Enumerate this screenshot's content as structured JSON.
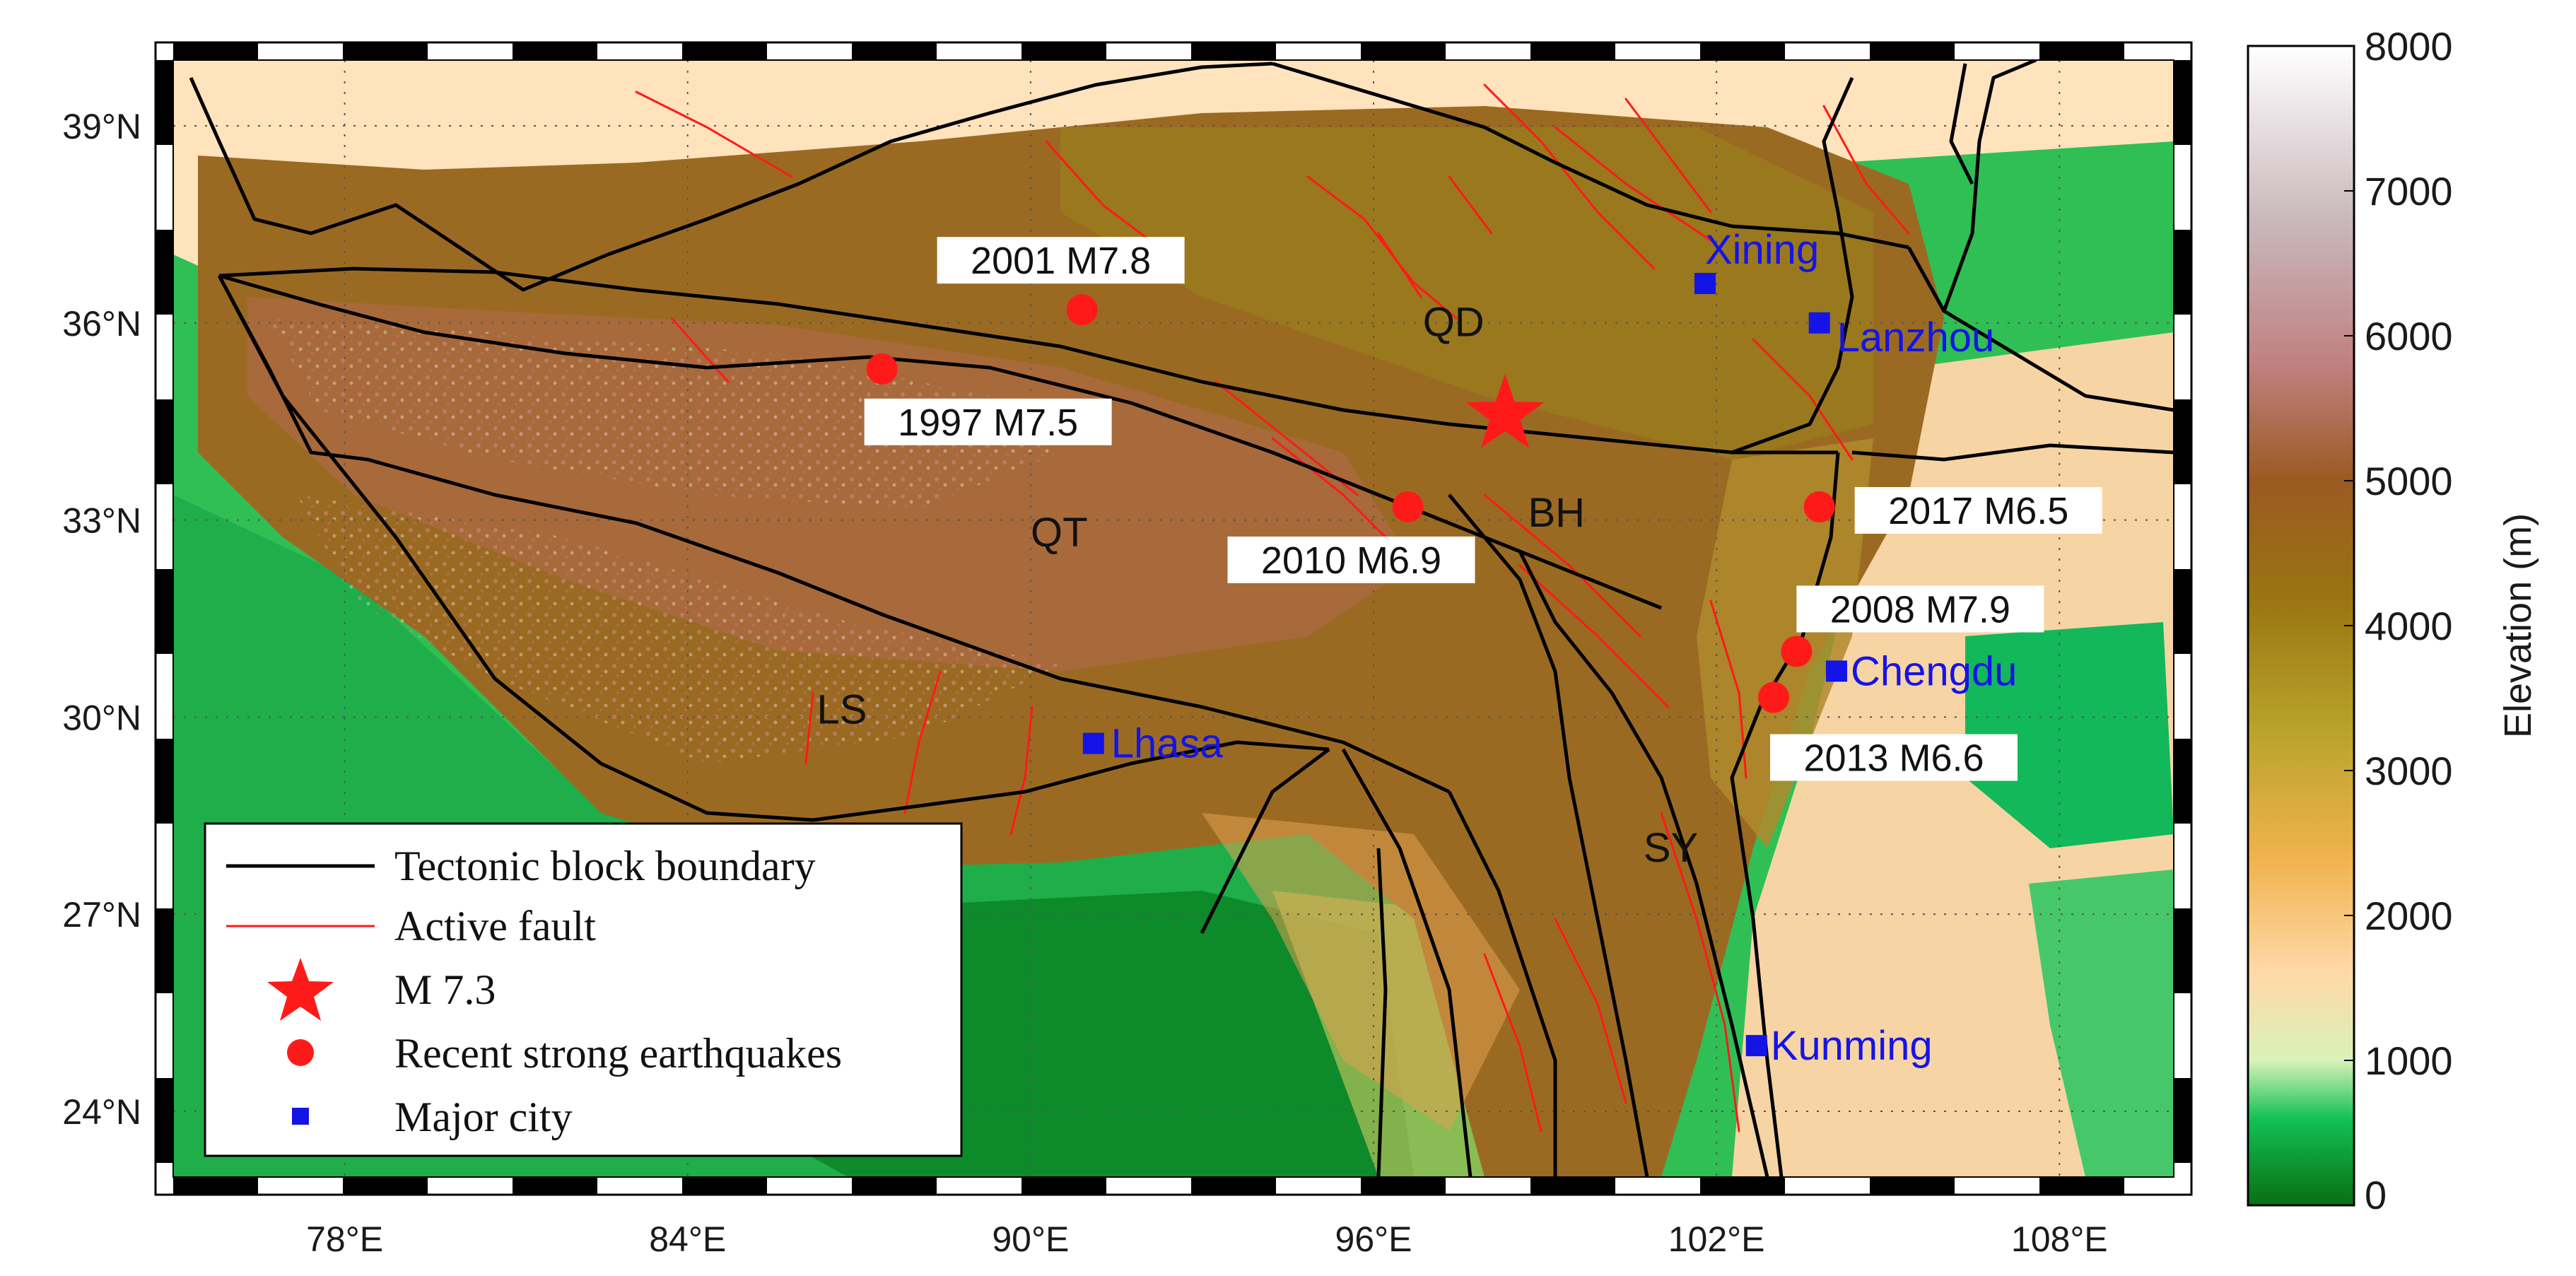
{
  "map": {
    "lon_range": [
      75,
      110
    ],
    "lat_range": [
      23,
      40
    ],
    "x_ticks": [
      {
        "value": 78,
        "label": "78°E"
      },
      {
        "value": 84,
        "label": "84°E"
      },
      {
        "value": 90,
        "label": "90°E"
      },
      {
        "value": 96,
        "label": "96°E"
      },
      {
        "value": 102,
        "label": "102°E"
      },
      {
        "value": 108,
        "label": "108°E"
      }
    ],
    "y_ticks": [
      {
        "value": 39,
        "label": "39°N"
      },
      {
        "value": 36,
        "label": "36°N"
      },
      {
        "value": 33,
        "label": "33°N"
      },
      {
        "value": 30,
        "label": "30°N"
      },
      {
        "value": 27,
        "label": "27°N"
      },
      {
        "value": 24,
        "label": "24°N"
      }
    ],
    "grid": true,
    "blocks": [
      {
        "label": "QD",
        "lon": 97.4,
        "lat": 35.8
      },
      {
        "label": "BH",
        "lon": 99.2,
        "lat": 32.9
      },
      {
        "label": "QT",
        "lon": 90.5,
        "lat": 32.6
      },
      {
        "label": "LS",
        "lon": 86.7,
        "lat": 29.9
      },
      {
        "label": "SY",
        "lon": 101.2,
        "lat": 27.8
      }
    ],
    "mainshock": {
      "label": "M 7.3",
      "lon": 98.3,
      "lat": 34.6,
      "color": "#ff1a1a"
    },
    "earthquakes": [
      {
        "label": "2001 M7.8",
        "lon": 90.9,
        "lat": 36.2
      },
      {
        "label": "1997 M7.5",
        "lon": 87.4,
        "lat": 35.3
      },
      {
        "label": "2010 M6.9",
        "lon": 96.6,
        "lat": 33.2
      },
      {
        "label": "2017 M6.5",
        "lon": 103.8,
        "lat": 33.2
      },
      {
        "label": "2008 M7.9",
        "lon": 103.4,
        "lat": 31.0
      },
      {
        "label": "2013 M6.6",
        "lon": 103.0,
        "lat": 30.3
      }
    ],
    "cities": [
      {
        "name": "Xining",
        "lon": 101.8,
        "lat": 36.6
      },
      {
        "name": "Lanzhou",
        "lon": 103.8,
        "lat": 36.0
      },
      {
        "name": "Chengdu",
        "lon": 104.1,
        "lat": 30.7
      },
      {
        "name": "Lhasa",
        "lon": 91.1,
        "lat": 29.6
      },
      {
        "name": "Kunming",
        "lon": 102.7,
        "lat": 25.0
      }
    ],
    "colors": {
      "boundary": "#000000",
      "fault": "#ff1a1a",
      "quake": "#ff1a1a",
      "city": "#1414e6"
    }
  },
  "legend": {
    "items": [
      {
        "key": "boundary",
        "label": "Tectonic block boundary"
      },
      {
        "key": "fault",
        "label": "Active fault"
      },
      {
        "key": "star",
        "label": "M 7.3"
      },
      {
        "key": "quake",
        "label": "Recent strong earthquakes"
      },
      {
        "key": "city",
        "label": "Major city"
      }
    ]
  },
  "colorbar": {
    "title": "Elevation (m)",
    "min": 0,
    "max": 8000,
    "ticks": [
      {
        "value": 8000,
        "label": "8000"
      },
      {
        "value": 7000,
        "label": "7000"
      },
      {
        "value": 6000,
        "label": "6000"
      },
      {
        "value": 5000,
        "label": "5000"
      },
      {
        "value": 4000,
        "label": "4000"
      },
      {
        "value": 3000,
        "label": "3000"
      },
      {
        "value": 2000,
        "label": "2000"
      },
      {
        "value": 1000,
        "label": "1000"
      },
      {
        "value": 0,
        "label": "0"
      }
    ],
    "stops": [
      {
        "value": 0,
        "color": "#0a6e14"
      },
      {
        "value": 600,
        "color": "#12c255"
      },
      {
        "value": 1000,
        "color": "#d9f2b8"
      },
      {
        "value": 1600,
        "color": "#ffd9a8"
      },
      {
        "value": 2400,
        "color": "#f0b24e"
      },
      {
        "value": 3300,
        "color": "#b8a22a"
      },
      {
        "value": 4200,
        "color": "#9a7412"
      },
      {
        "value": 5000,
        "color": "#9b5a22"
      },
      {
        "value": 5800,
        "color": "#c08080"
      },
      {
        "value": 6800,
        "color": "#c9b8bc"
      },
      {
        "value": 8000,
        "color": "#ffffff"
      }
    ]
  }
}
